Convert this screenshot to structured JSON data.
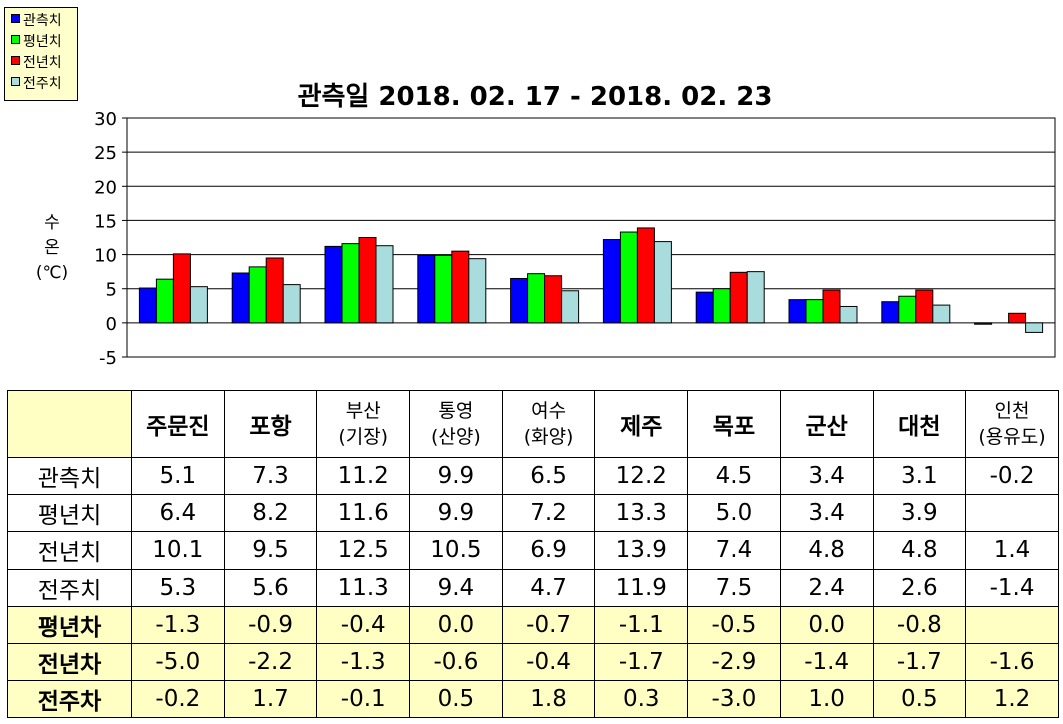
{
  "chart_data": {
    "type": "bar",
    "title": "관측일 2018. 02. 17 - 2018. 02. 23",
    "ylabel": [
      "수",
      "온",
      "(℃)"
    ],
    "ylim": [
      -5,
      30
    ],
    "yticks": [
      "30",
      "25",
      "20",
      "15",
      "10",
      "5",
      "0",
      "-5"
    ],
    "grid": true,
    "legend_position": "top-left",
    "categories": [
      "주문진",
      "포항",
      "부산 (기장)",
      "통영 (산양)",
      "여수 (화양)",
      "제주",
      "목포",
      "군산",
      "대천",
      "인천 (용유도)"
    ],
    "series": [
      {
        "name": "관측치",
        "color": "#0000ff",
        "values": [
          5.1,
          7.3,
          11.2,
          9.9,
          6.5,
          12.2,
          4.5,
          3.4,
          3.1,
          -0.2
        ]
      },
      {
        "name": "평년치",
        "color": "#00ff00",
        "values": [
          6.4,
          8.2,
          11.6,
          9.9,
          7.2,
          13.3,
          5.0,
          3.4,
          3.9,
          null
        ]
      },
      {
        "name": "전년치",
        "color": "#ff0000",
        "values": [
          10.1,
          9.5,
          12.5,
          10.5,
          6.9,
          13.9,
          7.4,
          4.8,
          4.8,
          1.4
        ]
      },
      {
        "name": "전주치",
        "color": "#a9dcdc",
        "values": [
          5.3,
          5.6,
          11.3,
          9.4,
          4.7,
          11.9,
          7.5,
          2.4,
          2.6,
          -1.4
        ]
      }
    ]
  },
  "table": {
    "header": [
      [
        "주문진"
      ],
      [
        "포항"
      ],
      [
        "부산",
        "(기장)"
      ],
      [
        "통영",
        "(산양)"
      ],
      [
        "여수",
        "(화양)"
      ],
      [
        "제주"
      ],
      [
        "목포"
      ],
      [
        "군산"
      ],
      [
        "대천"
      ],
      [
        "인천",
        "(용유도)"
      ]
    ],
    "rows": [
      {
        "label": "관측치",
        "kind": "obs",
        "cells": [
          "5.1",
          "7.3",
          "11.2",
          "9.9",
          "6.5",
          "12.2",
          "4.5",
          "3.4",
          "3.1",
          "-0.2"
        ]
      },
      {
        "label": "평년치",
        "kind": "obs",
        "cells": [
          "6.4",
          "8.2",
          "11.6",
          "9.9",
          "7.2",
          "13.3",
          "5.0",
          "3.4",
          "3.9",
          ""
        ]
      },
      {
        "label": "전년치",
        "kind": "obs",
        "cells": [
          "10.1",
          "9.5",
          "12.5",
          "10.5",
          "6.9",
          "13.9",
          "7.4",
          "4.8",
          "4.8",
          "1.4"
        ]
      },
      {
        "label": "전주치",
        "kind": "obs",
        "cells": [
          "5.3",
          "5.6",
          "11.3",
          "9.4",
          "4.7",
          "11.9",
          "7.5",
          "2.4",
          "2.6",
          "-1.4"
        ]
      },
      {
        "label": "평년차",
        "kind": "diff",
        "cells": [
          "-1.3",
          "-0.9",
          "-0.4",
          "0.0",
          "-0.7",
          "-1.1",
          "-0.5",
          "0.0",
          "-0.8",
          ""
        ]
      },
      {
        "label": "전년차",
        "kind": "diff",
        "cells": [
          "-5.0",
          "-2.2",
          "-1.3",
          "-0.6",
          "-0.4",
          "-1.7",
          "-2.9",
          "-1.4",
          "-1.7",
          "-1.6"
        ]
      },
      {
        "label": "전주차",
        "kind": "diff",
        "cells": [
          "-0.2",
          "1.7",
          "-0.1",
          "0.5",
          "1.8",
          "0.3",
          "-3.0",
          "1.0",
          "0.5",
          "1.2"
        ]
      }
    ]
  }
}
